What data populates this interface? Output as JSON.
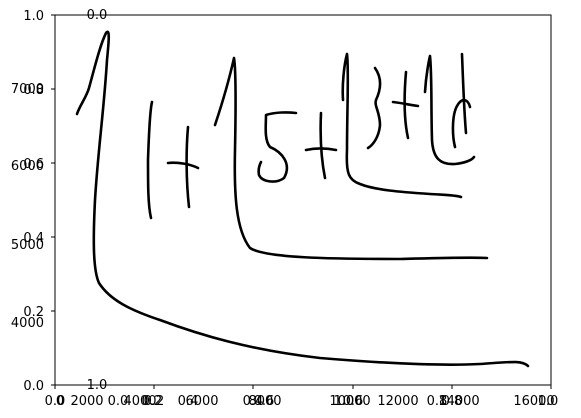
{
  "figure": {
    "left_ticks": [
      "0.0",
      "0.2",
      "0.4",
      "0.6",
      "0.8",
      "1.0"
    ],
    "left_secondary_ticks": [
      "4000",
      "5000",
      "6000",
      "7000"
    ],
    "top_ticks": [
      "0.0"
    ],
    "bottom_ticks_a": [
      "0.0",
      "0.2",
      "0.4",
      "0.6",
      "0.8",
      "1.0"
    ],
    "bottom_ticks_b": [
      "0.0",
      "0.2",
      "0.4",
      "0.6",
      "0.8",
      "1.0"
    ],
    "bottom_ticks_c": [
      "0",
      "2000",
      "4000",
      "6000",
      "8000",
      "10000",
      "12000",
      "14000",
      "16000"
    ],
    "bottom_extra_label": "1.0",
    "stroke_color": "#000000"
  }
}
